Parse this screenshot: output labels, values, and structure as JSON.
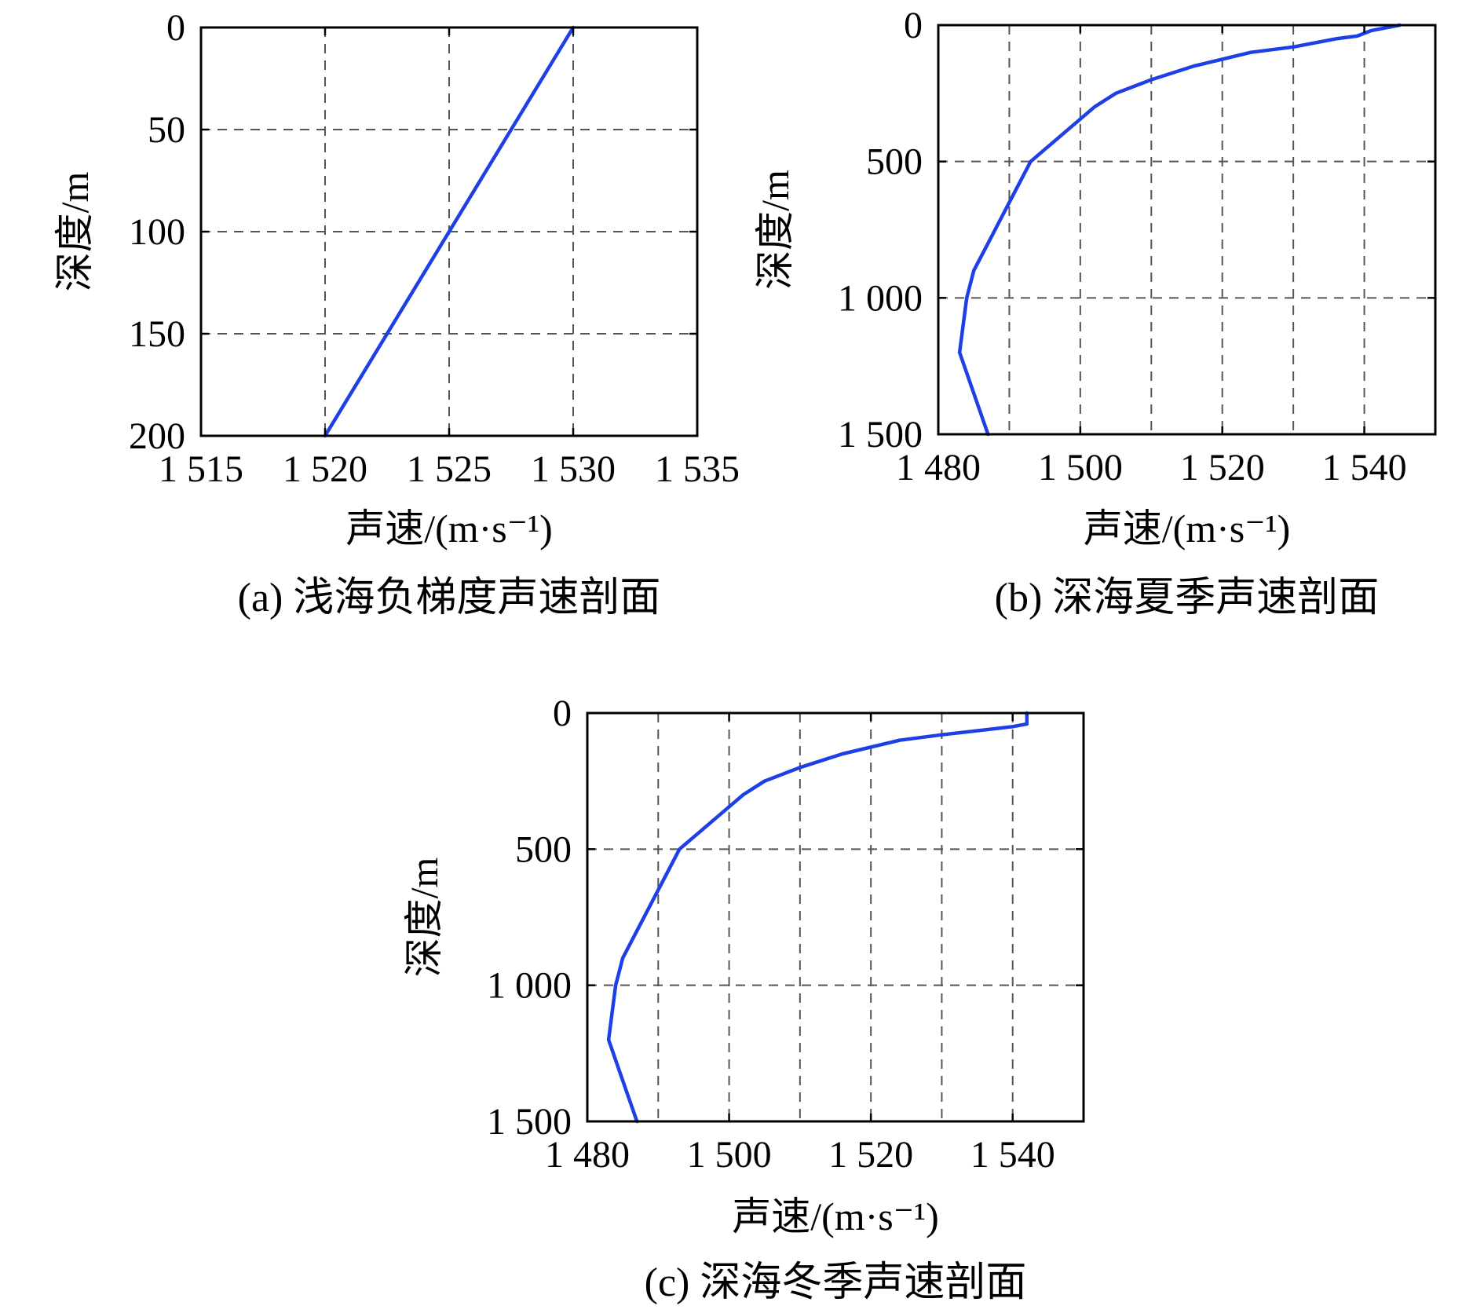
{
  "colors": {
    "line": "#1f3fe6",
    "grid": "#555555",
    "frame": "#000000"
  },
  "chart_data": [
    {
      "type": "line",
      "caption": "(a) 浅海负梯度声速剖面",
      "xlabel": "声速/(m·s⁻¹)",
      "ylabel": "深度/m",
      "xlim": [
        1515,
        1535
      ],
      "ylim": [
        0,
        200
      ],
      "y_inverted": true,
      "grid": true,
      "xticks": [
        1515,
        1520,
        1525,
        1530,
        1535
      ],
      "xtick_labels": [
        "1 515",
        "1 520",
        "1 525",
        "1 530",
        "1 535"
      ],
      "yticks": [
        0,
        50,
        100,
        150,
        200
      ],
      "ytick_labels": [
        "0",
        "50",
        "100",
        "150",
        "200"
      ],
      "series": [
        {
          "x": [
            1530,
            1520
          ],
          "y": [
            0,
            200
          ]
        }
      ]
    },
    {
      "type": "line",
      "caption": "(b) 深海夏季声速剖面",
      "xlabel": "声速/(m·s⁻¹)",
      "ylabel": "深度/m",
      "xlim": [
        1480,
        1550
      ],
      "ylim": [
        0,
        1500
      ],
      "y_inverted": true,
      "grid": true,
      "xticks": [
        1480,
        1500,
        1520,
        1540
      ],
      "xtick_labels": [
        "1 480",
        "1 500",
        "1 520",
        "1 540"
      ],
      "xgrid": [
        1490,
        1500,
        1510,
        1520,
        1530,
        1540
      ],
      "yticks": [
        0,
        500,
        1000,
        1500
      ],
      "ytick_labels": [
        "0",
        "500",
        "1 000",
        "1 500"
      ],
      "ygrid": [
        500,
        1000
      ],
      "series": [
        {
          "x": [
            1545,
            1541,
            1539,
            1536,
            1530,
            1524,
            1516,
            1510,
            1505,
            1502,
            1493,
            1490,
            1487,
            1485,
            1484,
            1483,
            1485,
            1487
          ],
          "y": [
            0,
            20,
            40,
            50,
            80,
            100,
            150,
            200,
            250,
            300,
            500,
            650,
            800,
            900,
            1000,
            1200,
            1350,
            1500
          ]
        }
      ]
    },
    {
      "type": "line",
      "caption": "(c) 深海冬季声速剖面",
      "xlabel": "声速/(m·s⁻¹)",
      "ylabel": "深度/m",
      "xlim": [
        1480,
        1550
      ],
      "ylim": [
        0,
        1500
      ],
      "y_inverted": true,
      "grid": true,
      "xticks": [
        1480,
        1500,
        1520,
        1540
      ],
      "xtick_labels": [
        "1 480",
        "1 500",
        "1 520",
        "1 540"
      ],
      "xgrid": [
        1490,
        1500,
        1510,
        1520,
        1530,
        1540
      ],
      "yticks": [
        0,
        500,
        1000,
        1500
      ],
      "ytick_labels": [
        "0",
        "500",
        "1 000",
        "1 500"
      ],
      "ygrid": [
        500,
        1000
      ],
      "series": [
        {
          "x": [
            1542,
            1542,
            1540,
            1530,
            1524,
            1516,
            1510,
            1505,
            1502,
            1493,
            1490,
            1487,
            1485,
            1484,
            1483,
            1485,
            1487
          ],
          "y": [
            0,
            40,
            50,
            80,
            100,
            150,
            200,
            250,
            300,
            500,
            650,
            800,
            900,
            1000,
            1200,
            1350,
            1500
          ]
        }
      ]
    }
  ]
}
